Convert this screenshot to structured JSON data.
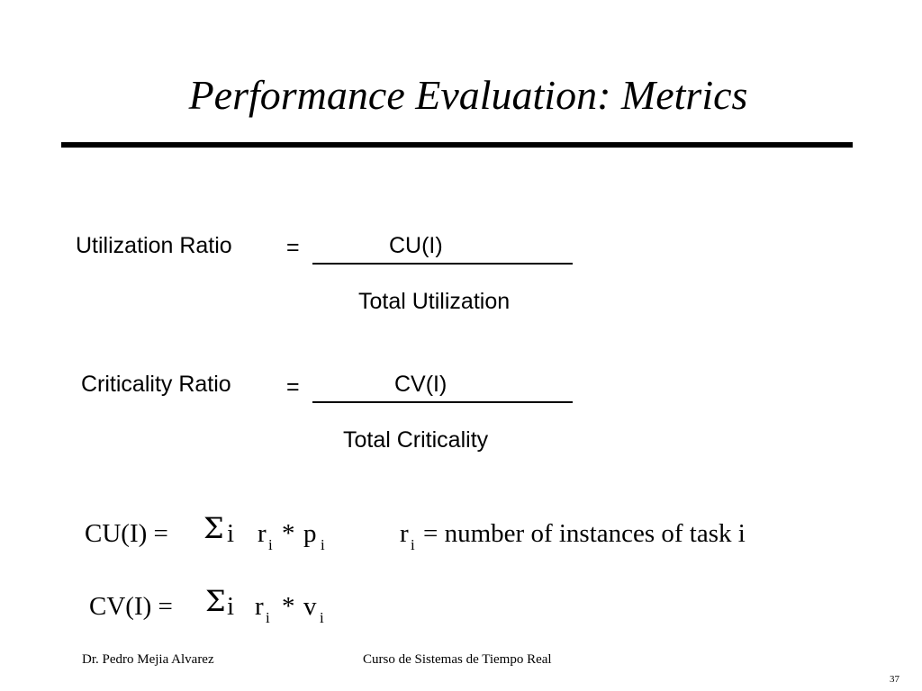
{
  "slide": {
    "title": "Performance Evaluation: Metrics"
  },
  "utilization": {
    "label": "Utilization Ratio",
    "equals": "=",
    "numerator": "CU(I)",
    "denominator": "Total Utilization"
  },
  "criticality": {
    "label": "Criticality Ratio",
    "equals": "=",
    "numerator": "CV(I)",
    "denominator": "Total Criticality"
  },
  "cu_formula": {
    "lhs": "CU(I) =",
    "sigma": "Σ",
    "index": "i",
    "r": "r",
    "r_sub": "i",
    "op": "*",
    "p": "p",
    "p_sub": "i"
  },
  "definition": {
    "r": "r",
    "r_sub": "i",
    "text": "= number of instances of task i"
  },
  "cv_formula": {
    "lhs": "CV(I) =",
    "sigma": "Σ",
    "index": "i",
    "r": "r",
    "r_sub": "i",
    "op": "*",
    "v": "v",
    "v_sub": "i"
  },
  "footer": {
    "author": "Dr. Pedro Mejia Alvarez",
    "course": "Curso de Sistemas de Tiempo Real",
    "page_number": "37"
  }
}
